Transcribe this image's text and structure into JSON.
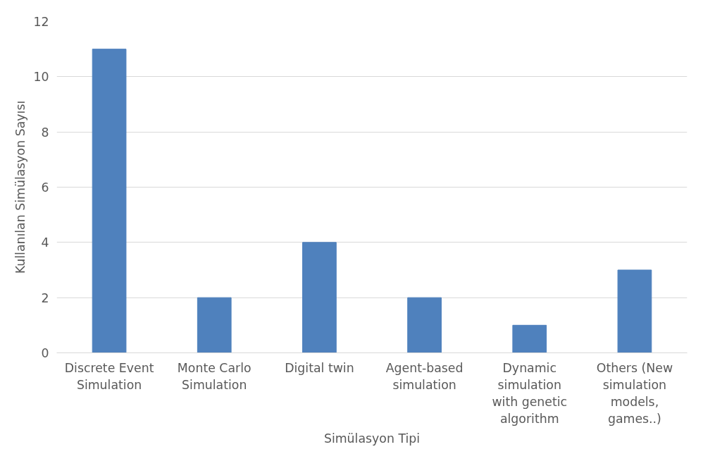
{
  "chart_data": {
    "type": "bar",
    "xlabel": "Simülasyon Tipi",
    "ylabel": "Kullanılan Simülasyon Sayısı",
    "categories": [
      "Discrete Event Simulation",
      "Monte Carlo Simulation",
      "Digital twin",
      "Agent-based simulation",
      "Dynamic simulation with genetic algorithm",
      "Others (New simulation models, games..)"
    ],
    "values": [
      11,
      2,
      4,
      2,
      1,
      3
    ],
    "color": "#4f81bd",
    "ylim": [
      0,
      12
    ],
    "yticks": [
      0,
      2,
      4,
      6,
      8,
      10,
      12
    ],
    "grid": "y"
  }
}
